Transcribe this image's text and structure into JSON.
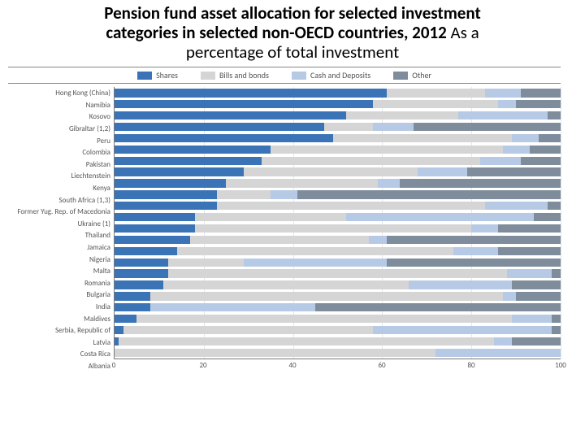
{
  "title_line1": "Pension fund asset allocation for selected investment",
  "title_line2": "categories in selected non-OECD countries, 2012 ",
  "title_line2_light": "As a",
  "title_line3_light": "percentage of total investment",
  "title_fontsize": 21,
  "title_color": "#000000",
  "chart": {
    "type": "stacked-bar-horizontal",
    "background_color": "#ffffff",
    "grid_color": "#e6e6e6",
    "axis_color": "#777777",
    "label_color": "#555555",
    "label_fontsize": 9,
    "legend_fontsize": 10,
    "row_height": 14.6,
    "ylabel_width": 130,
    "xlim": [
      0,
      100
    ],
    "xtick_step": 20,
    "xticks": [
      0,
      20,
      40,
      60,
      80,
      100
    ],
    "series": [
      {
        "name": "Shares",
        "color": "#3a74b7"
      },
      {
        "name": "Bills and bonds",
        "color": "#d5d5d5"
      },
      {
        "name": "Cash and Deposits",
        "color": "#b7cae5"
      },
      {
        "name": "Other",
        "color": "#7e8c9c"
      }
    ],
    "countries": [
      {
        "label": "Hong Kong (China)",
        "values": [
          61,
          22,
          8,
          9
        ]
      },
      {
        "label": "Namibia",
        "values": [
          58,
          28,
          4,
          10
        ]
      },
      {
        "label": "Kosovo",
        "values": [
          52,
          25,
          20,
          3
        ]
      },
      {
        "label": "Gibraltar (1,2)",
        "values": [
          47,
          11,
          9,
          33
        ]
      },
      {
        "label": "Peru",
        "values": [
          49,
          40,
          6,
          5
        ]
      },
      {
        "label": "Colombia",
        "values": [
          35,
          52,
          6,
          7
        ]
      },
      {
        "label": "Pakistan",
        "values": [
          33,
          49,
          9,
          9
        ]
      },
      {
        "label": "Liechtenstein",
        "values": [
          29,
          39,
          11,
          21
        ]
      },
      {
        "label": "Kenya",
        "values": [
          25,
          34,
          5,
          36
        ]
      },
      {
        "label": "South Africa (1,3)",
        "values": [
          23,
          12,
          6,
          59
        ]
      },
      {
        "label": "Former Yug. Rep. of Macedonia",
        "values": [
          23,
          60,
          14,
          3
        ]
      },
      {
        "label": "Ukraine (1)",
        "values": [
          18,
          34,
          42,
          6
        ]
      },
      {
        "label": "Thailand",
        "values": [
          18,
          62,
          6,
          14
        ]
      },
      {
        "label": "Jamaica",
        "values": [
          17,
          40,
          4,
          39
        ]
      },
      {
        "label": "Nigeria",
        "values": [
          14,
          62,
          10,
          14
        ]
      },
      {
        "label": "Malta",
        "values": [
          12,
          17,
          32,
          39
        ]
      },
      {
        "label": "Romania",
        "values": [
          12,
          76,
          10,
          2
        ]
      },
      {
        "label": "Bulgaria",
        "values": [
          11,
          55,
          23,
          11
        ]
      },
      {
        "label": "India",
        "values": [
          8,
          79,
          3,
          10
        ]
      },
      {
        "label": "Maldives",
        "values": [
          8,
          0,
          37,
          55
        ]
      },
      {
        "label": "Serbia, Republic of",
        "values": [
          5,
          84,
          9,
          2
        ]
      },
      {
        "label": "Latvia",
        "values": [
          2,
          56,
          40,
          2
        ]
      },
      {
        "label": "Costa Rica",
        "values": [
          1,
          84,
          4,
          11
        ]
      },
      {
        "label": "Albania",
        "values": [
          0,
          72,
          28,
          0
        ]
      }
    ]
  }
}
